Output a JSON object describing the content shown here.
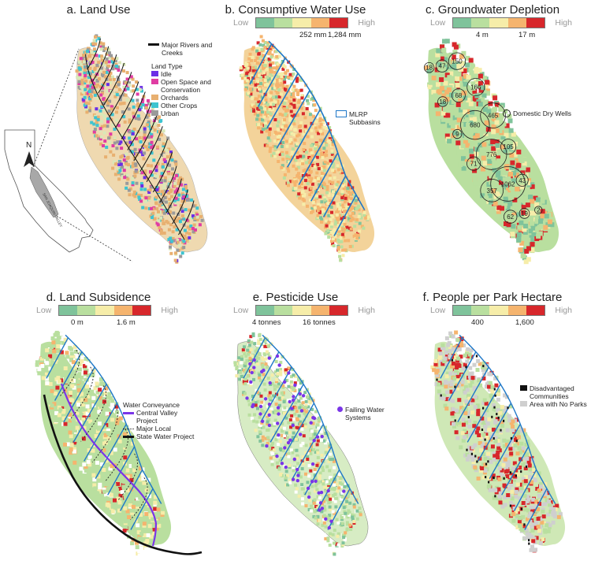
{
  "colors": {
    "green_dark": "#7fc39b",
    "green_light": "#b9df9f",
    "yellow": "#f6eda9",
    "orange": "#f5b46e",
    "red": "#d7272b",
    "valley_blue": "#1f78c8",
    "purple": "#7a35e8",
    "idle": "#6b2ee6",
    "open_space": "#e03ca3",
    "orchards": "#e8b070",
    "other_crops": "#3ec4d0",
    "urban": "#9a9a9a"
  },
  "panel_a": {
    "title": "a. Land Use",
    "legend": {
      "rivers_label": "Major Rivers and Creeks",
      "land_type_title": "Land Type",
      "items": [
        "Idle",
        "Open Space and Conservation",
        "Orchards",
        "Other Crops",
        "Urban"
      ]
    },
    "inset": {
      "north_label": "N",
      "valley_label": "SAN JOAQUIN VALLEY"
    }
  },
  "panel_b": {
    "title": "b. Consumptive Water Use",
    "scale": {
      "low": "Low",
      "high": "High",
      "tick1": "252 mm",
      "tick2": "1,284 mm"
    },
    "legend_label": "MLRP Subbasins"
  },
  "panel_c": {
    "title": "c. Groundwater Depletion",
    "scale": {
      "low": "Low",
      "high": "High",
      "tick1": "4 m",
      "tick2": "17 m"
    },
    "legend_label": "Domestic Dry Wells",
    "well_counts": [
      "18",
      "47",
      "150",
      "18",
      "68",
      "166",
      "9",
      "680",
      "465",
      "71",
      "776",
      "105",
      "357",
      "1062",
      "43",
      "62",
      "19",
      "2"
    ]
  },
  "panel_d": {
    "title": "d. Land Subsidence",
    "scale": {
      "low": "Low",
      "high": "High",
      "tick1": "0 m",
      "tick2": "1.6 m"
    },
    "legend": {
      "title": "Water Conveyance",
      "items": [
        "Central Valley Project",
        "Major Local",
        "State Water Project"
      ]
    }
  },
  "panel_e": {
    "title": "e. Pesticide Use",
    "scale": {
      "low": "Low",
      "high": "High",
      "tick1": "4 tonnes",
      "tick2": "16 tonnes"
    },
    "legend_label": "Failing Water Systems"
  },
  "panel_f": {
    "title": "f. People per Park Hectare",
    "scale": {
      "low": "Low",
      "high": "High",
      "tick1": "400",
      "tick2": "1,600"
    },
    "legend": {
      "items": [
        "Disadvantaged Communities",
        "Area with No Parks"
      ]
    }
  }
}
